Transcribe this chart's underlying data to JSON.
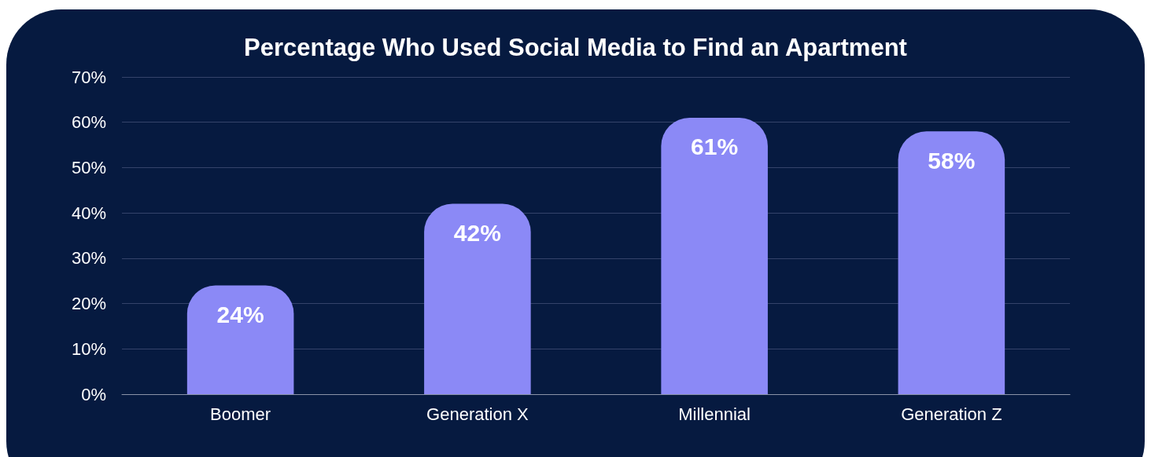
{
  "chart_data": {
    "type": "bar",
    "title": "Percentage Who Used Social Media to Find an Apartment",
    "categories": [
      "Boomer",
      "Generation X",
      "Millennial",
      "Generation Z"
    ],
    "values": [
      24,
      42,
      61,
      58
    ],
    "color": "#8b89f6",
    "value_labels": [
      "24%",
      "42%",
      "61%",
      "58%"
    ],
    "ylim": [
      0,
      70
    ],
    "yticks": [
      {
        "value": 0,
        "label": "0%"
      },
      {
        "value": 10,
        "label": "10%"
      },
      {
        "value": 20,
        "label": "20%"
      },
      {
        "value": 30,
        "label": "30%"
      },
      {
        "value": 40,
        "label": "40%"
      },
      {
        "value": 50,
        "label": "50%"
      },
      {
        "value": 60,
        "label": "60%"
      },
      {
        "value": 70,
        "label": "70%"
      }
    ],
    "grid": "y"
  }
}
